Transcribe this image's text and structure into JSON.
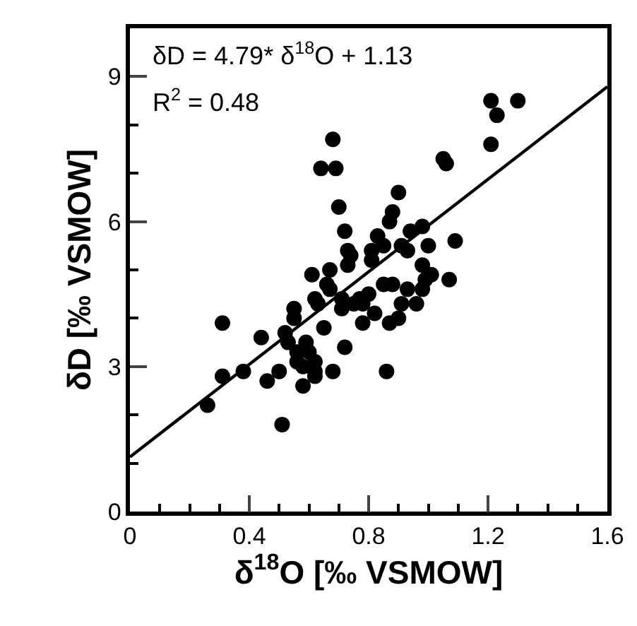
{
  "chart_data": {
    "type": "scatter",
    "xlabel": "δ$^{18}$O [‰ VSMOW]",
    "ylabel": "δD [‰ VSMOW]",
    "annotations": [
      "δD = 4.79* δ$^{18}$O + 1.13",
      "R$^{2}$ = 0.48"
    ],
    "xlim": [
      0,
      1.6
    ],
    "ylim": [
      0,
      10
    ],
    "xticks": [
      0,
      {
        "value": 0.1,
        "label": null
      },
      {
        "value": 0.2,
        "label": null
      },
      {
        "value": 0.3,
        "label": null
      },
      0.4,
      {
        "value": 0.5,
        "label": null
      },
      {
        "value": 0.6,
        "label": null
      },
      {
        "value": 0.7,
        "label": null
      },
      0.8,
      {
        "value": 0.9,
        "label": null
      },
      {
        "value": 1.0,
        "label": null
      },
      {
        "value": 1.1,
        "label": null
      },
      1.2,
      {
        "value": 1.3,
        "label": null
      },
      {
        "value": 1.4,
        "label": null
      },
      {
        "value": 1.5,
        "label": null
      },
      1.6
    ],
    "yticks": [
      0,
      {
        "value": 1,
        "label": null
      },
      {
        "value": 2,
        "label": null
      },
      3,
      {
        "value": 4,
        "label": null
      },
      {
        "value": 5,
        "label": null
      },
      6,
      {
        "value": 7,
        "label": null
      },
      {
        "value": 8,
        "label": null
      },
      9
    ],
    "grid": false,
    "marker": "circle",
    "series": [
      {
        "color": "#000000",
        "x": [
          0.26,
          0.31,
          0.31,
          0.38,
          0.44,
          0.46,
          0.51,
          0.5,
          0.52,
          0.53,
          0.55,
          0.55,
          0.56,
          0.56,
          0.58,
          0.58,
          0.59,
          0.6,
          0.61,
          0.62,
          0.62,
          0.62,
          0.62,
          0.63,
          0.64,
          0.65,
          0.66,
          0.67,
          0.67,
          0.68,
          0.68,
          0.69,
          0.7,
          0.71,
          0.71,
          0.72,
          0.72,
          0.73,
          0.73,
          0.74,
          0.75,
          0.77,
          0.78,
          0.78,
          0.8,
          0.81,
          0.81,
          0.83,
          0.82,
          0.85,
          0.85,
          0.86,
          0.87,
          0.87,
          0.88,
          0.88,
          0.9,
          0.9,
          0.91,
          0.91,
          0.93,
          0.93,
          0.94,
          0.96,
          0.98,
          0.98,
          0.99,
          0.98,
          1.0,
          1.01,
          1.05,
          1.06,
          1.07,
          1.09,
          1.21,
          1.21,
          1.23,
          1.3
        ],
        "values": [
          2.2,
          3.9,
          2.8,
          2.9,
          3.6,
          2.7,
          1.8,
          2.9,
          3.7,
          3.5,
          4.0,
          4.2,
          3.1,
          3.3,
          2.6,
          3.0,
          3.5,
          3.3,
          4.9,
          4.4,
          2.8,
          2.9,
          3.1,
          4.3,
          7.1,
          3.8,
          4.7,
          4.6,
          5.0,
          7.7,
          2.9,
          7.1,
          6.3,
          4.2,
          4.4,
          5.8,
          3.4,
          5.4,
          5.1,
          5.3,
          4.3,
          4.4,
          4.3,
          3.9,
          4.5,
          5.2,
          5.4,
          5.7,
          4.1,
          5.5,
          4.7,
          2.9,
          3.9,
          6.0,
          6.2,
          4.7,
          6.6,
          4.0,
          4.3,
          5.5,
          4.6,
          5.4,
          5.8,
          4.3,
          5.1,
          4.6,
          4.8,
          5.9,
          5.5,
          4.9,
          7.3,
          7.2,
          4.8,
          5.6,
          7.6,
          8.5,
          8.2,
          8.5
        ]
      },
      {
        "type": "line",
        "color": "#000000",
        "line_style": "solid",
        "marker": "none",
        "x": [
          0,
          1.6
        ],
        "values": [
          1.13,
          8.79
        ]
      }
    ]
  }
}
